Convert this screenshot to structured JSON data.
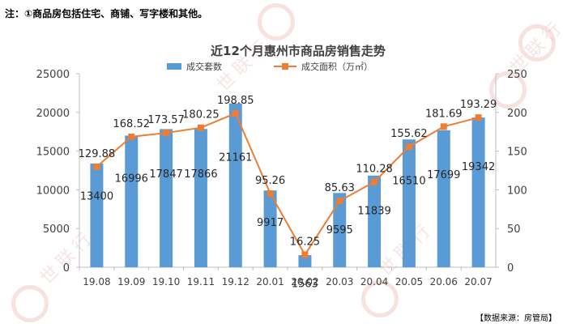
{
  "note": "注：①商品房包括住宅、商铺、写字楼和其他。",
  "source": "【数据来源：房管局】",
  "watermark": "世联行",
  "colors": {
    "bar": "#5B9BD5",
    "line": "#ED7D31",
    "axis": "#bfbfbf"
  },
  "chart_data": {
    "type": "bar",
    "title": "近12个月惠州市商品房销售走势",
    "legend_position": "top",
    "grid": false,
    "categories": [
      "19.08",
      "19.09",
      "19.10",
      "19.11",
      "19.12",
      "20.01",
      "20.02",
      "20.03",
      "20.04",
      "20.05",
      "20.06",
      "20.07"
    ],
    "series": [
      {
        "name": "成交套数",
        "type": "bar",
        "axis": "left",
        "values": [
          13400,
          16996,
          17847,
          17866,
          21161,
          9917,
          1563,
          9595,
          11839,
          16510,
          17699,
          19342
        ]
      },
      {
        "name": "成交面积（万㎡）",
        "type": "line",
        "axis": "right",
        "values": [
          129.88,
          168.52,
          173.57,
          180.25,
          198.85,
          95.26,
          16.25,
          85.63,
          110.28,
          155.62,
          181.69,
          193.29
        ]
      }
    ],
    "ylim_left": [
      0,
      25000
    ],
    "yticks_left": [
      "0",
      "5000",
      "10000",
      "15000",
      "20000",
      "25000"
    ],
    "ylim_right": [
      0,
      250
    ],
    "yticks_right": [
      "0",
      "50",
      "100",
      "150",
      "200",
      "250"
    ]
  }
}
